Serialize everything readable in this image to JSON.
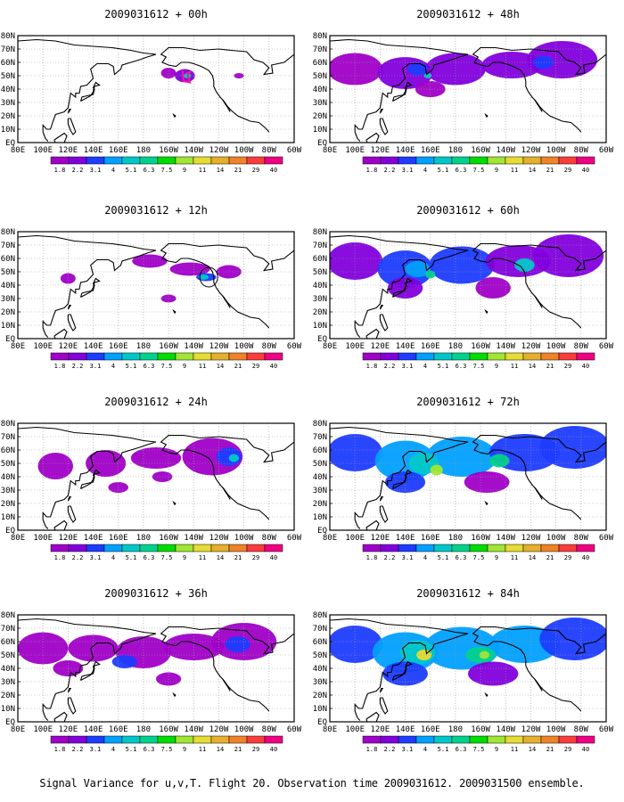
{
  "figure_caption": "Signal Variance for u,v,T. Flight 20. Observation time 2009031612. 2009031500 ensemble.",
  "lon_ticks": [
    "80E",
    "100E",
    "120E",
    "140E",
    "160E",
    "180",
    "160W",
    "140W",
    "120W",
    "100W",
    "80W",
    "60W"
  ],
  "lat_ticks": [
    "80N",
    "70N",
    "60N",
    "50N",
    "40N",
    "30N",
    "20N",
    "10N",
    "EQ"
  ],
  "colorbar": {
    "labels": [
      "1.8",
      "2.2",
      "3.1",
      "4",
      "5.1",
      "6.3",
      "7.5",
      "9",
      "11",
      "14",
      "21",
      "29",
      "40"
    ],
    "colors": [
      "#a000c8",
      "#8200dc",
      "#1e3cff",
      "#00a0ff",
      "#00c8c8",
      "#00d28c",
      "#00dc00",
      "#a0e632",
      "#e6dc32",
      "#e6af2d",
      "#f08228",
      "#fa3c3c",
      "#f00082"
    ]
  },
  "colors": {
    "coastline": "#000000",
    "grid": "#9a9a9a",
    "flight_track": "#ff1493"
  },
  "panels": [
    {
      "title": "2009031612 + 00h",
      "lead_hours": 0
    },
    {
      "title": "2009031612 + 48h",
      "lead_hours": 48
    },
    {
      "title": "2009031612 + 12h",
      "lead_hours": 12
    },
    {
      "title": "2009031612 + 60h",
      "lead_hours": 60
    },
    {
      "title": "2009031612 + 24h",
      "lead_hours": 24
    },
    {
      "title": "2009031612 + 72h",
      "lead_hours": 72
    },
    {
      "title": "2009031612 + 36h",
      "lead_hours": 36
    },
    {
      "title": "2009031612 + 84h",
      "lead_hours": 84
    }
  ]
}
